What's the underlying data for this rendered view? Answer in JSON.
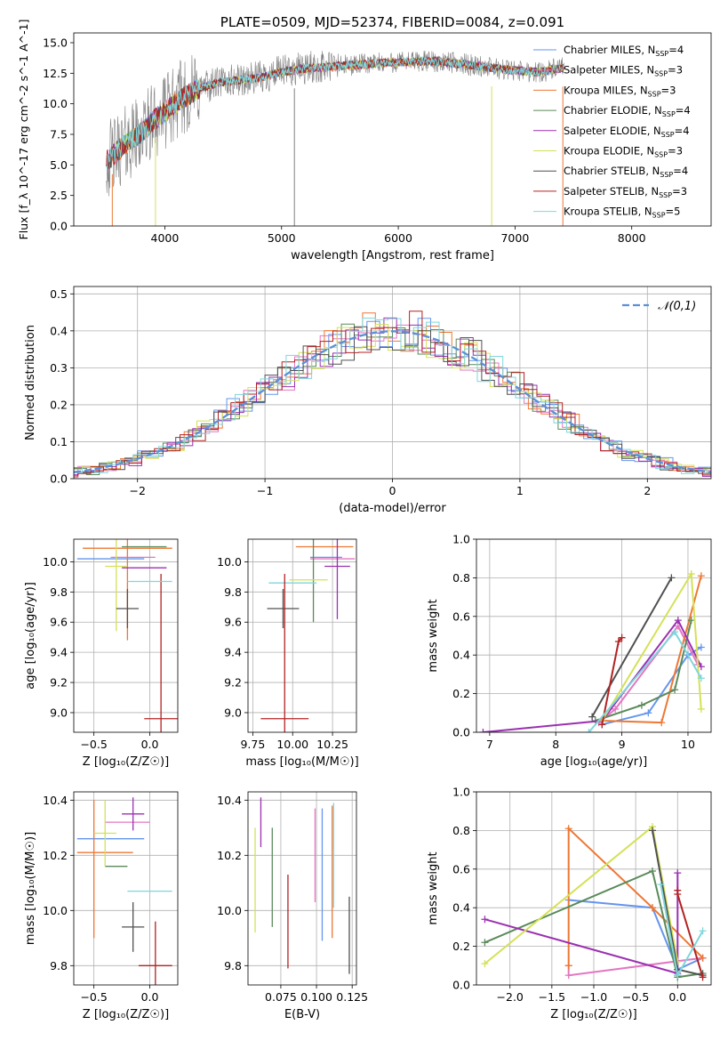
{
  "chart_data": [
    {
      "id": "spectrum",
      "type": "line",
      "title": "PLATE=0509, MJD=52374, FIBERID=0084, z=0.091",
      "xlabel": "wavelength [Angstrom, rest frame]",
      "ylabel": "Flux [f_λ 10^-17 erg cm^-2 s^-1 A^-1]",
      "xlim": [
        3220,
        8680
      ],
      "ylim": [
        0,
        15.8
      ],
      "xticks": [
        4000,
        5000,
        6000,
        7000,
        8000
      ],
      "yticks": [
        0.0,
        2.5,
        5.0,
        7.5,
        10.0,
        12.5,
        15.0
      ],
      "legend_position": "upper right",
      "series": [
        {
          "name": "Chabrier MILES, N_SSP=4",
          "color": "#6495ed"
        },
        {
          "name": "Salpeter MILES, N_SSP=3",
          "color": "#e377c2"
        },
        {
          "name": "Kroupa MILES, N_SSP=3",
          "color": "#ee7733"
        },
        {
          "name": "Chabrier ELODIE, N_SSP=4",
          "color": "#5a8a5a"
        },
        {
          "name": "Salpeter ELODIE, N_SSP=4",
          "color": "#9b30b0"
        },
        {
          "name": "Kroupa ELODIE, N_SSP=3",
          "color": "#d4e157"
        },
        {
          "name": "Chabrier STELIB, N_SSP=4",
          "color": "#505050"
        },
        {
          "name": "Salpeter STELIB, N_SSP=3",
          "color": "#b22222"
        },
        {
          "name": "Kroupa STELIB, N_SSP=5",
          "color": "#7fd6dc"
        }
      ],
      "data_color": "#808080",
      "continuum": {
        "x": [
          3500,
          3650,
          3800,
          3900,
          4000,
          4150,
          4300,
          4500,
          4800,
          5000,
          5200,
          5500,
          5800,
          6000,
          6300,
          6600,
          6900,
          7200,
          7400
        ],
        "y": [
          5.3,
          6.6,
          7.6,
          8.6,
          9.3,
          10.5,
          11.3,
          11.8,
          12.1,
          12.6,
          12.9,
          13.1,
          13.3,
          13.4,
          13.5,
          13.2,
          12.8,
          12.6,
          12.9
        ]
      }
    },
    {
      "id": "residuals",
      "type": "histogram",
      "xlabel": "(data-model)/error",
      "ylabel": "Normed distribution",
      "xlim": [
        -2.5,
        2.5
      ],
      "ylim": [
        0,
        0.52
      ],
      "xticks": [
        -2,
        -1,
        0,
        1,
        2
      ],
      "yticks": [
        0.0,
        0.1,
        0.2,
        0.3,
        0.4,
        0.5
      ],
      "legend": [
        "𝒩(0,1)"
      ],
      "gaussian_color": "#5b8fd9",
      "bin_width": 0.1,
      "hist_seeds": [
        3,
        11,
        29,
        7,
        17,
        23,
        5,
        13,
        19
      ]
    },
    {
      "id": "age-vs-Z",
      "type": "scatter",
      "xlabel": "Z [log₁₀(Z/Z☉)]",
      "ylabel": "age  [log₁₀(age/yr)]",
      "xlim": [
        -0.68,
        0.25
      ],
      "ylim": [
        8.87,
        10.15
      ],
      "xticks": [
        -0.5,
        0.0
      ],
      "yticks": [
        9.0,
        9.2,
        9.4,
        9.6,
        9.8,
        10.0
      ],
      "points": [
        {
          "x": -0.35,
          "y": 10.02,
          "xerr": 0.3,
          "yerr": 0.0,
          "color": "#6495ed"
        },
        {
          "x": -0.15,
          "y": 10.03,
          "xerr": 0.2,
          "yerr": 0.0,
          "color": "#e377c2"
        },
        {
          "x": -0.2,
          "y": 10.09,
          "xerr": 0.4,
          "yerr": 0.61,
          "color": "#ee7733"
        },
        {
          "x": -0.05,
          "y": 10.1,
          "xerr": 0.2,
          "yerr": 0.0,
          "color": "#5a8a5a"
        },
        {
          "x": -0.05,
          "y": 9.96,
          "xerr": 0.2,
          "yerr": 0.0,
          "color": "#9b30b0"
        },
        {
          "x": -0.3,
          "y": 9.97,
          "xerr": 0.1,
          "yerr": 0.43,
          "color": "#d4e157"
        },
        {
          "x": -0.2,
          "y": 9.69,
          "xerr": 0.1,
          "yerr": 0.13,
          "color": "#505050"
        },
        {
          "x": 0.1,
          "y": 8.96,
          "xerr": 0.15,
          "yerr": 0.96,
          "color": "#b22222"
        },
        {
          "x": 0.0,
          "y": 9.87,
          "xerr": 0.2,
          "yerr": 0.0,
          "color": "#7fd6dc"
        }
      ]
    },
    {
      "id": "age-vs-mass",
      "type": "scatter",
      "xlabel": "mass [log₁₀(M/M☉)]",
      "ylabel": "",
      "xlim": [
        9.72,
        10.4
      ],
      "ylim": [
        8.87,
        10.15
      ],
      "xticks": [
        9.75,
        10.0,
        10.25
      ],
      "yticks": [
        9.0,
        9.2,
        9.4,
        9.6,
        9.8,
        10.0
      ],
      "points": [
        {
          "x": 10.2,
          "y": 10.1,
          "xerr": 0.18,
          "yerr": 0.0,
          "color": "#ee7733"
        },
        {
          "x": 10.25,
          "y": 10.02,
          "xerr": 0.14,
          "yerr": 0.0,
          "color": "#e377c2"
        },
        {
          "x": 10.21,
          "y": 10.03,
          "xerr": 0.1,
          "yerr": 0.0,
          "color": "#6495ed"
        },
        {
          "x": 10.28,
          "y": 9.97,
          "xerr": 0.08,
          "yerr": 0.35,
          "color": "#9b30b0"
        },
        {
          "x": 10.13,
          "y": 10.05,
          "xerr": 0.0,
          "yerr": 0.45,
          "color": "#5a8a5a"
        },
        {
          "x": 10.1,
          "y": 9.88,
          "xerr": 0.12,
          "yerr": 0.0,
          "color": "#d4e157"
        },
        {
          "x": 10.0,
          "y": 9.86,
          "xerr": 0.15,
          "yerr": 0.0,
          "color": "#7fd6dc"
        },
        {
          "x": 9.94,
          "y": 9.69,
          "xerr": 0.1,
          "yerr": 0.13,
          "color": "#505050"
        },
        {
          "x": 9.95,
          "y": 8.96,
          "xerr": 0.15,
          "yerr": 0.96,
          "color": "#b22222"
        }
      ]
    },
    {
      "id": "massweight-vs-age",
      "type": "line",
      "xlabel": "age  [log₁₀(age/yr)]",
      "ylabel": "mass weight",
      "xlim": [
        6.8,
        10.35
      ],
      "ylim": [
        0,
        1.0
      ],
      "xticks": [
        7,
        8,
        9,
        10
      ],
      "yticks": [
        0.0,
        0.2,
        0.4,
        0.6,
        0.8,
        1.0
      ],
      "series": [
        {
          "color": "#6495ed",
          "x": [
            8.7,
            9.4,
            10.0,
            10.2
          ],
          "y": [
            0.04,
            0.1,
            0.4,
            0.44
          ]
        },
        {
          "color": "#e377c2",
          "x": [
            8.65,
            8.9,
            9.85,
            10.15
          ],
          "y": [
            0.05,
            0.12,
            0.55,
            0.35
          ]
        },
        {
          "color": "#ee7733",
          "x": [
            8.7,
            9.6,
            10.2
          ],
          "y": [
            0.06,
            0.05,
            0.81
          ]
        },
        {
          "color": "#5a8a5a",
          "x": [
            8.6,
            9.3,
            9.8,
            10.05
          ],
          "y": [
            0.06,
            0.14,
            0.22,
            0.58
          ]
        },
        {
          "color": "#9b30b0",
          "x": [
            6.9,
            8.7,
            9.85,
            10.2
          ],
          "y": [
            0.0,
            0.06,
            0.58,
            0.34
          ]
        },
        {
          "color": "#d4e157",
          "x": [
            8.7,
            10.05,
            10.2
          ],
          "y": [
            0.06,
            0.82,
            0.12
          ]
        },
        {
          "color": "#505050",
          "x": [
            8.55,
            9.75
          ],
          "y": [
            0.08,
            0.8
          ]
        },
        {
          "color": "#b22222",
          "x": [
            8.7,
            8.95,
            9.0
          ],
          "y": [
            0.04,
            0.47,
            0.49
          ]
        },
        {
          "color": "#7fd6dc",
          "x": [
            8.5,
            9.8,
            10.2
          ],
          "y": [
            0.0,
            0.52,
            0.28
          ]
        }
      ]
    },
    {
      "id": "mass-vs-Z",
      "type": "scatter",
      "xlabel": "Z [log₁₀(Z/Z☉)]",
      "ylabel": "mass [log₁₀(M/M☉)]",
      "xlim": [
        -0.68,
        0.25
      ],
      "ylim": [
        9.73,
        10.43
      ],
      "xticks": [
        -0.5,
        0.0
      ],
      "yticks": [
        9.8,
        10.0,
        10.2,
        10.4
      ],
      "points": [
        {
          "x": -0.35,
          "y": 10.26,
          "xerr": 0.3,
          "yerr": 0.0,
          "color": "#6495ed"
        },
        {
          "x": -0.2,
          "y": 10.32,
          "xerr": 0.2,
          "yerr": 0.0,
          "color": "#e377c2"
        },
        {
          "x": -0.4,
          "y": 10.21,
          "xerr": 0.25,
          "yerr": 0.0,
          "color": "#ee7733"
        },
        {
          "x": -0.5,
          "y": 10.15,
          "xerr": 0.0,
          "yerr": 0.25,
          "color": "#ee7733"
        },
        {
          "x": -0.3,
          "y": 10.16,
          "xerr": 0.1,
          "yerr": 0.0,
          "color": "#5a8a5a"
        },
        {
          "x": -0.15,
          "y": 10.35,
          "xerr": 0.1,
          "yerr": 0.06,
          "color": "#9b30b0"
        },
        {
          "x": -0.4,
          "y": 10.28,
          "xerr": 0.1,
          "yerr": 0.12,
          "color": "#d4e157"
        },
        {
          "x": -0.15,
          "y": 9.94,
          "xerr": 0.1,
          "yerr": 0.09,
          "color": "#505050"
        },
        {
          "x": 0.05,
          "y": 9.8,
          "xerr": 0.15,
          "yerr": 0.16,
          "color": "#b22222"
        },
        {
          "x": 0.0,
          "y": 10.07,
          "xerr": 0.2,
          "yerr": 0.0,
          "color": "#7fd6dc"
        }
      ]
    },
    {
      "id": "mass-vs-ebv",
      "type": "scatter",
      "xlabel": "E(B-V)",
      "ylabel": "",
      "xlim": [
        0.052,
        0.128
      ],
      "ylim": [
        9.73,
        10.43
      ],
      "xticks": [
        0.075,
        0.1,
        0.125
      ],
      "yticks": [
        9.8,
        10.0,
        10.2,
        10.4
      ],
      "points": [
        {
          "x": 0.057,
          "y": 10.11,
          "yerr": 0.19,
          "color": "#d4e157"
        },
        {
          "x": 0.061,
          "y": 10.32,
          "yerr": 0.09,
          "color": "#9b30b0"
        },
        {
          "x": 0.069,
          "y": 10.12,
          "yerr": 0.18,
          "color": "#5a8a5a"
        },
        {
          "x": 0.08,
          "y": 9.96,
          "yerr": 0.17,
          "color": "#b22222"
        },
        {
          "x": 0.099,
          "y": 10.2,
          "yerr": 0.17,
          "color": "#e377c2"
        },
        {
          "x": 0.104,
          "y": 10.13,
          "yerr": 0.24,
          "color": "#6495ed"
        },
        {
          "x": 0.111,
          "y": 10.14,
          "yerr": 0.24,
          "color": "#ee7733"
        },
        {
          "x": 0.112,
          "y": 10.2,
          "yerr": 0.19,
          "color": "#7fd6dc"
        },
        {
          "x": 0.123,
          "y": 9.91,
          "yerr": 0.14,
          "color": "#505050"
        }
      ]
    },
    {
      "id": "massweight-vs-Z",
      "type": "line",
      "xlabel": "Z [log₁₀(Z/Z☉)]",
      "ylabel": "mass weight",
      "xlim": [
        -2.4,
        0.4
      ],
      "ylim": [
        0,
        1.0
      ],
      "xticks": [
        -2.0,
        -1.5,
        -1.0,
        -0.5,
        0.0
      ],
      "yticks": [
        0.0,
        0.2,
        0.4,
        0.6,
        0.8,
        1.0
      ],
      "series": [
        {
          "color": "#6495ed",
          "x": [
            -1.3,
            -0.3,
            0.0,
            0.3
          ],
          "y": [
            0.44,
            0.4,
            0.08,
            0.14
          ]
        },
        {
          "color": "#e377c2",
          "x": [
            -1.3,
            -1.3,
            0.3
          ],
          "y": [
            0.1,
            0.05,
            0.14
          ]
        },
        {
          "color": "#ee7733",
          "x": [
            -1.3,
            -1.3,
            -0.3,
            0.3
          ],
          "y": [
            0.1,
            0.81,
            0.4,
            0.14
          ]
        },
        {
          "color": "#5a8a5a",
          "x": [
            -2.3,
            -0.3,
            0.0,
            0.3
          ],
          "y": [
            0.22,
            0.59,
            0.04,
            0.06
          ]
        },
        {
          "color": "#9b30b0",
          "x": [
            -2.3,
            0.0,
            0.0,
            0.0
          ],
          "y": [
            0.34,
            0.06,
            0.58,
            0.05
          ]
        },
        {
          "color": "#d4e157",
          "x": [
            -2.3,
            -0.3,
            0.0
          ],
          "y": [
            0.11,
            0.82,
            0.12
          ]
        },
        {
          "color": "#505050",
          "x": [
            -0.3,
            0.0,
            0.3
          ],
          "y": [
            0.8,
            0.08,
            0.05
          ]
        },
        {
          "color": "#b22222",
          "x": [
            0.0,
            0.0,
            0.3
          ],
          "y": [
            0.49,
            0.47,
            0.04
          ]
        },
        {
          "color": "#7fd6dc",
          "x": [
            -0.2,
            0.0,
            0.3
          ],
          "y": [
            0.52,
            0.05,
            0.28
          ]
        }
      ]
    }
  ]
}
